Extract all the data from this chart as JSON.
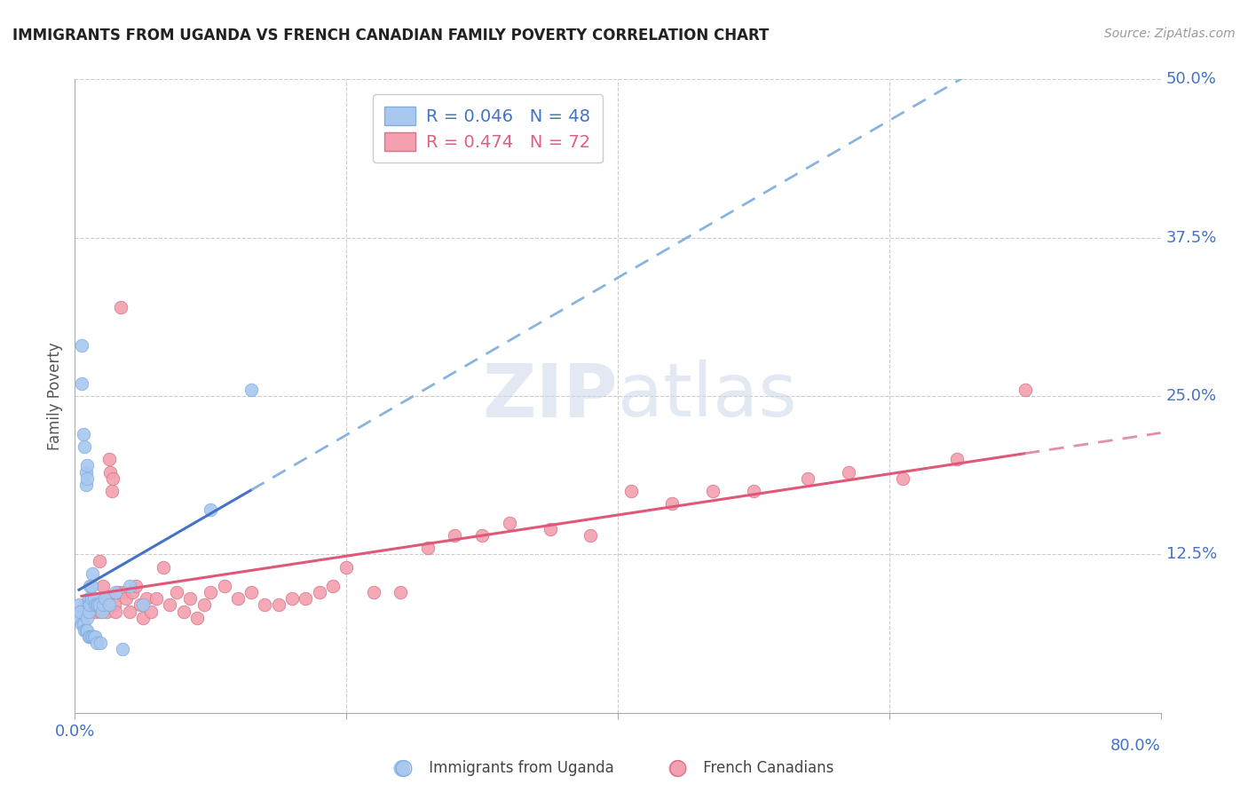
{
  "title": "IMMIGRANTS FROM UGANDA VS FRENCH CANADIAN FAMILY POVERTY CORRELATION CHART",
  "source": "Source: ZipAtlas.com",
  "ylabel": "Family Poverty",
  "xlim": [
    0.0,
    0.8
  ],
  "ylim": [
    0.0,
    0.5
  ],
  "legend_r1": "0.046",
  "legend_n1": "48",
  "legend_r2": "0.474",
  "legend_n2": "72",
  "color_uganda": "#a8c8f0",
  "color_french": "#f4a0b0",
  "color_blue_text": "#4472c4",
  "color_pink_text": "#e06080",
  "watermark_zip": "ZIP",
  "watermark_atlas": "atlas",
  "uganda_x": [
    0.003,
    0.003,
    0.004,
    0.005,
    0.005,
    0.005,
    0.006,
    0.006,
    0.007,
    0.007,
    0.008,
    0.008,
    0.008,
    0.009,
    0.009,
    0.009,
    0.009,
    0.01,
    0.01,
    0.01,
    0.01,
    0.011,
    0.011,
    0.011,
    0.012,
    0.012,
    0.012,
    0.013,
    0.013,
    0.014,
    0.014,
    0.015,
    0.015,
    0.016,
    0.016,
    0.017,
    0.018,
    0.019,
    0.02,
    0.021,
    0.022,
    0.025,
    0.03,
    0.035,
    0.04,
    0.05,
    0.1,
    0.13
  ],
  "uganda_y": [
    0.085,
    0.075,
    0.08,
    0.29,
    0.26,
    0.07,
    0.22,
    0.07,
    0.21,
    0.065,
    0.19,
    0.18,
    0.065,
    0.195,
    0.185,
    0.075,
    0.065,
    0.09,
    0.085,
    0.08,
    0.06,
    0.1,
    0.085,
    0.06,
    0.1,
    0.09,
    0.06,
    0.11,
    0.06,
    0.09,
    0.06,
    0.085,
    0.06,
    0.085,
    0.055,
    0.085,
    0.085,
    0.055,
    0.08,
    0.085,
    0.09,
    0.085,
    0.095,
    0.05,
    0.1,
    0.085,
    0.16,
    0.255
  ],
  "french_x": [
    0.005,
    0.007,
    0.008,
    0.009,
    0.01,
    0.011,
    0.012,
    0.013,
    0.014,
    0.015,
    0.016,
    0.017,
    0.018,
    0.019,
    0.02,
    0.021,
    0.022,
    0.023,
    0.024,
    0.025,
    0.026,
    0.027,
    0.028,
    0.029,
    0.03,
    0.032,
    0.034,
    0.036,
    0.038,
    0.04,
    0.042,
    0.045,
    0.048,
    0.05,
    0.053,
    0.056,
    0.06,
    0.065,
    0.07,
    0.075,
    0.08,
    0.085,
    0.09,
    0.095,
    0.1,
    0.11,
    0.12,
    0.13,
    0.14,
    0.15,
    0.16,
    0.17,
    0.18,
    0.19,
    0.2,
    0.22,
    0.24,
    0.26,
    0.28,
    0.3,
    0.32,
    0.35,
    0.38,
    0.41,
    0.44,
    0.47,
    0.5,
    0.54,
    0.57,
    0.61,
    0.65,
    0.7
  ],
  "french_y": [
    0.08,
    0.085,
    0.08,
    0.085,
    0.08,
    0.09,
    0.085,
    0.08,
    0.085,
    0.08,
    0.085,
    0.09,
    0.12,
    0.08,
    0.085,
    0.1,
    0.09,
    0.08,
    0.09,
    0.2,
    0.19,
    0.175,
    0.185,
    0.085,
    0.08,
    0.095,
    0.32,
    0.095,
    0.09,
    0.08,
    0.095,
    0.1,
    0.085,
    0.075,
    0.09,
    0.08,
    0.09,
    0.115,
    0.085,
    0.095,
    0.08,
    0.09,
    0.075,
    0.085,
    0.095,
    0.1,
    0.09,
    0.095,
    0.085,
    0.085,
    0.09,
    0.09,
    0.095,
    0.1,
    0.115,
    0.095,
    0.095,
    0.13,
    0.14,
    0.14,
    0.15,
    0.145,
    0.14,
    0.175,
    0.165,
    0.175,
    0.175,
    0.185,
    0.19,
    0.185,
    0.2,
    0.255
  ]
}
